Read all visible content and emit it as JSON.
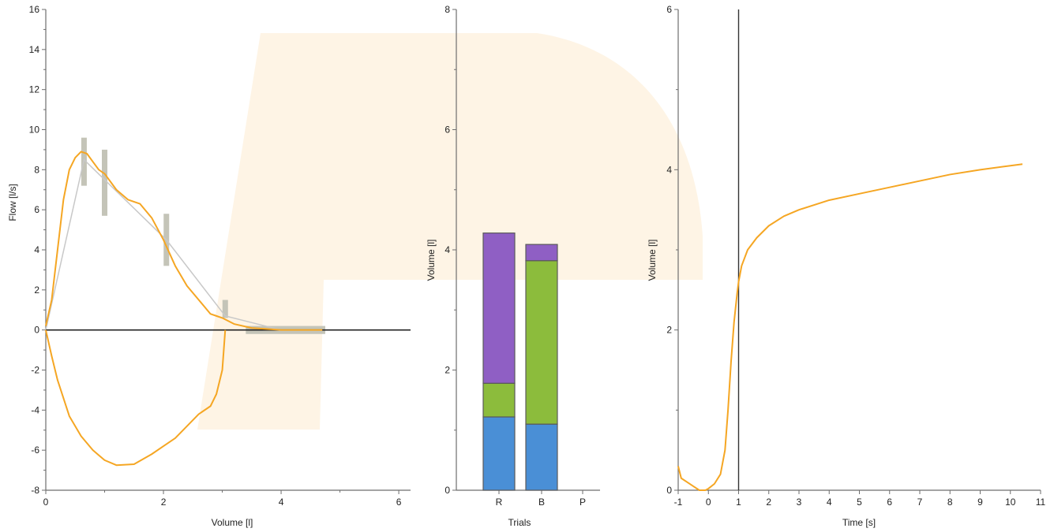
{
  "colors": {
    "curve": "#f5a623",
    "predicted_line": "#c8c8c8",
    "predicted_bar": "#c4c4b8",
    "zero_line": "#222222",
    "segment_blue": "#4a8fd6",
    "segment_green": "#8cbc3c",
    "segment_purple": "#8f5fc4",
    "watermark": "#fdf0dc"
  },
  "chart_data": [
    {
      "type": "line",
      "xlabel": "Volume [l]",
      "ylabel": "Flow [l/s]",
      "xlim": [
        0,
        6.2
      ],
      "ylim": [
        -8,
        16
      ],
      "xticks": [
        "0",
        "2",
        "4",
        "6"
      ],
      "yticks": [
        "-8",
        "-6",
        "-4",
        "-2",
        "0",
        "2",
        "4",
        "6",
        "8",
        "10",
        "12",
        "14",
        "16"
      ],
      "grid": false,
      "series": [
        {
          "x": [
            0,
            0.1,
            0.2,
            0.3,
            0.4,
            0.5,
            0.6,
            0.7,
            0.8,
            0.9,
            1.0,
            1.2,
            1.4,
            1.6,
            1.8,
            2.0,
            2.2,
            2.4,
            2.6,
            2.8,
            2.9,
            3.0,
            3.2,
            3.5,
            4.0,
            4.5,
            4.7
          ],
          "y": [
            0.2,
            1.5,
            4.0,
            6.5,
            8.0,
            8.6,
            8.9,
            8.8,
            8.4,
            8.0,
            7.8,
            7.0,
            6.5,
            6.3,
            5.6,
            4.5,
            3.2,
            2.2,
            1.5,
            0.8,
            0.7,
            0.6,
            0.3,
            0.1,
            0.0,
            0.0,
            0.0
          ]
        },
        {
          "x": [
            3.05,
            3.0,
            2.9,
            2.8,
            2.6,
            2.4,
            2.2,
            2.0,
            1.8,
            1.5,
            1.2,
            1.0,
            0.8,
            0.6,
            0.4,
            0.2,
            0.1,
            0.0
          ],
          "y": [
            0.0,
            -2.0,
            -3.2,
            -3.8,
            -4.2,
            -4.8,
            -5.4,
            -5.8,
            -6.2,
            -6.7,
            -6.75,
            -6.5,
            -6.0,
            -5.3,
            -4.3,
            -2.5,
            -1.3,
            0.0
          ]
        }
      ],
      "predicted": {
        "x": [
          0,
          0.65,
          1.0,
          2.05,
          3.05,
          4.0,
          4.7
        ],
        "y": [
          0,
          8.5,
          7.5,
          4.5,
          0.7,
          0.0,
          0.0
        ],
        "bars": [
          {
            "x": 0.65,
            "y_low": 7.2,
            "y_high": 9.6
          },
          {
            "x": 1.0,
            "y_low": 5.7,
            "y_high": 9.0
          },
          {
            "x": 2.05,
            "y_low": 3.2,
            "y_high": 5.8
          },
          {
            "x": 3.05,
            "y_low": 0.6,
            "y_high": 1.5
          },
          {
            "x": 4.1,
            "y_low": -0.2,
            "y_high": 0.2,
            "x_low": 3.4,
            "x_high": 4.75
          }
        ]
      }
    },
    {
      "type": "bar",
      "xlabel": "Trials",
      "ylabel": "Volume [l]",
      "ylim": [
        0,
        8
      ],
      "yticks": [
        "0",
        "2",
        "4",
        "6",
        "8"
      ],
      "categories": [
        "R",
        "B",
        "P"
      ],
      "stacks": [
        {
          "category": "R",
          "segments": [
            1.22,
            0.56,
            2.5
          ]
        },
        {
          "category": "B",
          "segments": [
            1.1,
            2.72,
            0.27
          ]
        }
      ]
    },
    {
      "type": "line",
      "xlabel": "Time [s]",
      "ylabel": "Volume [l]",
      "xlim": [
        -1,
        11
      ],
      "ylim": [
        0,
        6
      ],
      "xticks": [
        "-1",
        "0",
        "1",
        "2",
        "3",
        "4",
        "5",
        "6",
        "7",
        "8",
        "9",
        "10",
        "11"
      ],
      "yticks": [
        "0",
        "2",
        "4",
        "6"
      ],
      "grid": false,
      "vline_x": 1,
      "series": [
        {
          "x": [
            -1,
            -0.9,
            -0.7,
            -0.5,
            -0.3,
            -0.1,
            0.0,
            0.2,
            0.4,
            0.55,
            0.65,
            0.75,
            0.85,
            0.95,
            1.0,
            1.1,
            1.3,
            1.6,
            2.0,
            2.5,
            3.0,
            4.0,
            5.0,
            6.0,
            7.0,
            8.0,
            9.0,
            10.0,
            10.4
          ],
          "y": [
            0.3,
            0.15,
            0.1,
            0.05,
            0.0,
            0.0,
            0.02,
            0.08,
            0.2,
            0.5,
            1.0,
            1.6,
            2.1,
            2.45,
            2.6,
            2.8,
            3.0,
            3.15,
            3.3,
            3.42,
            3.5,
            3.62,
            3.7,
            3.78,
            3.86,
            3.94,
            4.0,
            4.05,
            4.07
          ]
        }
      ]
    }
  ]
}
